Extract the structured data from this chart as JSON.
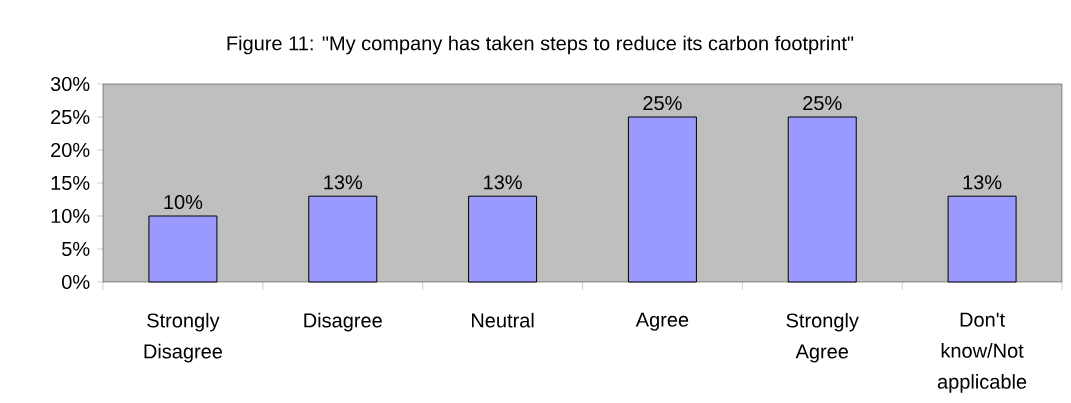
{
  "chart_data": {
    "type": "bar",
    "title": "Figure 11: \"My company has taken steps to reduce its carbon footprint\"",
    "categories": [
      "Strongly Disagree",
      "Disagree",
      "Neutral",
      "Agree",
      "Strongly Agree",
      "Don't know/Not applicable"
    ],
    "values": [
      10,
      13,
      13,
      25,
      25,
      13
    ],
    "value_labels": [
      "10%",
      "13%",
      "13%",
      "25%",
      "25%",
      "13%"
    ],
    "color": "#9999ff",
    "ylim": [
      0,
      30
    ],
    "yticks": [
      {
        "value": 0,
        "label": "0%"
      },
      {
        "value": 5,
        "label": "5%"
      },
      {
        "value": 10,
        "label": "10%"
      },
      {
        "value": 15,
        "label": "15%"
      },
      {
        "value": 20,
        "label": "20%"
      },
      {
        "value": 25,
        "label": "25%"
      },
      {
        "value": 30,
        "label": "30%"
      }
    ],
    "grid": false
  }
}
